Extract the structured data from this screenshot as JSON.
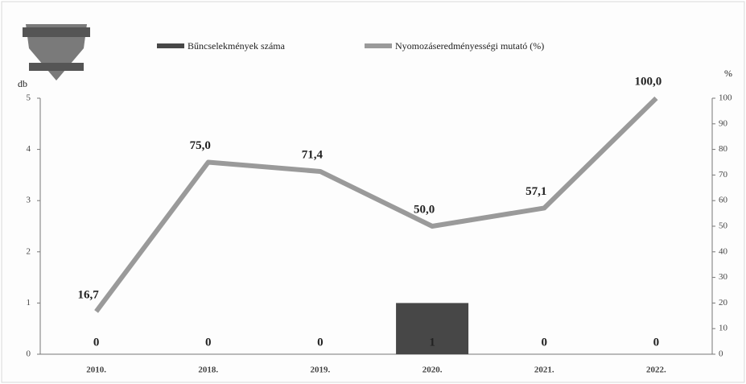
{
  "chart_data": {
    "type": "combo",
    "categories": [
      "2010.",
      "2018.",
      "2019.",
      "2020.",
      "2021.",
      "2022."
    ],
    "series": [
      {
        "name": "Bűncselekmények száma",
        "type": "bar",
        "color": "#474747",
        "values": [
          0,
          0,
          0,
          1,
          0,
          0
        ]
      },
      {
        "name": "Nyomozáseredményességi mutató (%)",
        "type": "line",
        "axis": "y2",
        "color": "#9a9a9a",
        "values": [
          16.7,
          75.0,
          71.4,
          50.0,
          57.1,
          100.0
        ],
        "value_labels": [
          "16,7",
          "75,0",
          "71,4",
          "50,0",
          "57,1",
          "100,0"
        ]
      }
    ],
    "ylabel": "db",
    "y2label": "%",
    "ylim": [
      0,
      5
    ],
    "yticks": [
      0,
      1,
      2,
      3,
      4,
      5
    ],
    "y2lim": [
      0,
      100
    ],
    "y2ticks": [
      0,
      10,
      20,
      30,
      40,
      50,
      60,
      70,
      80,
      90,
      100
    ],
    "legend": "top"
  }
}
